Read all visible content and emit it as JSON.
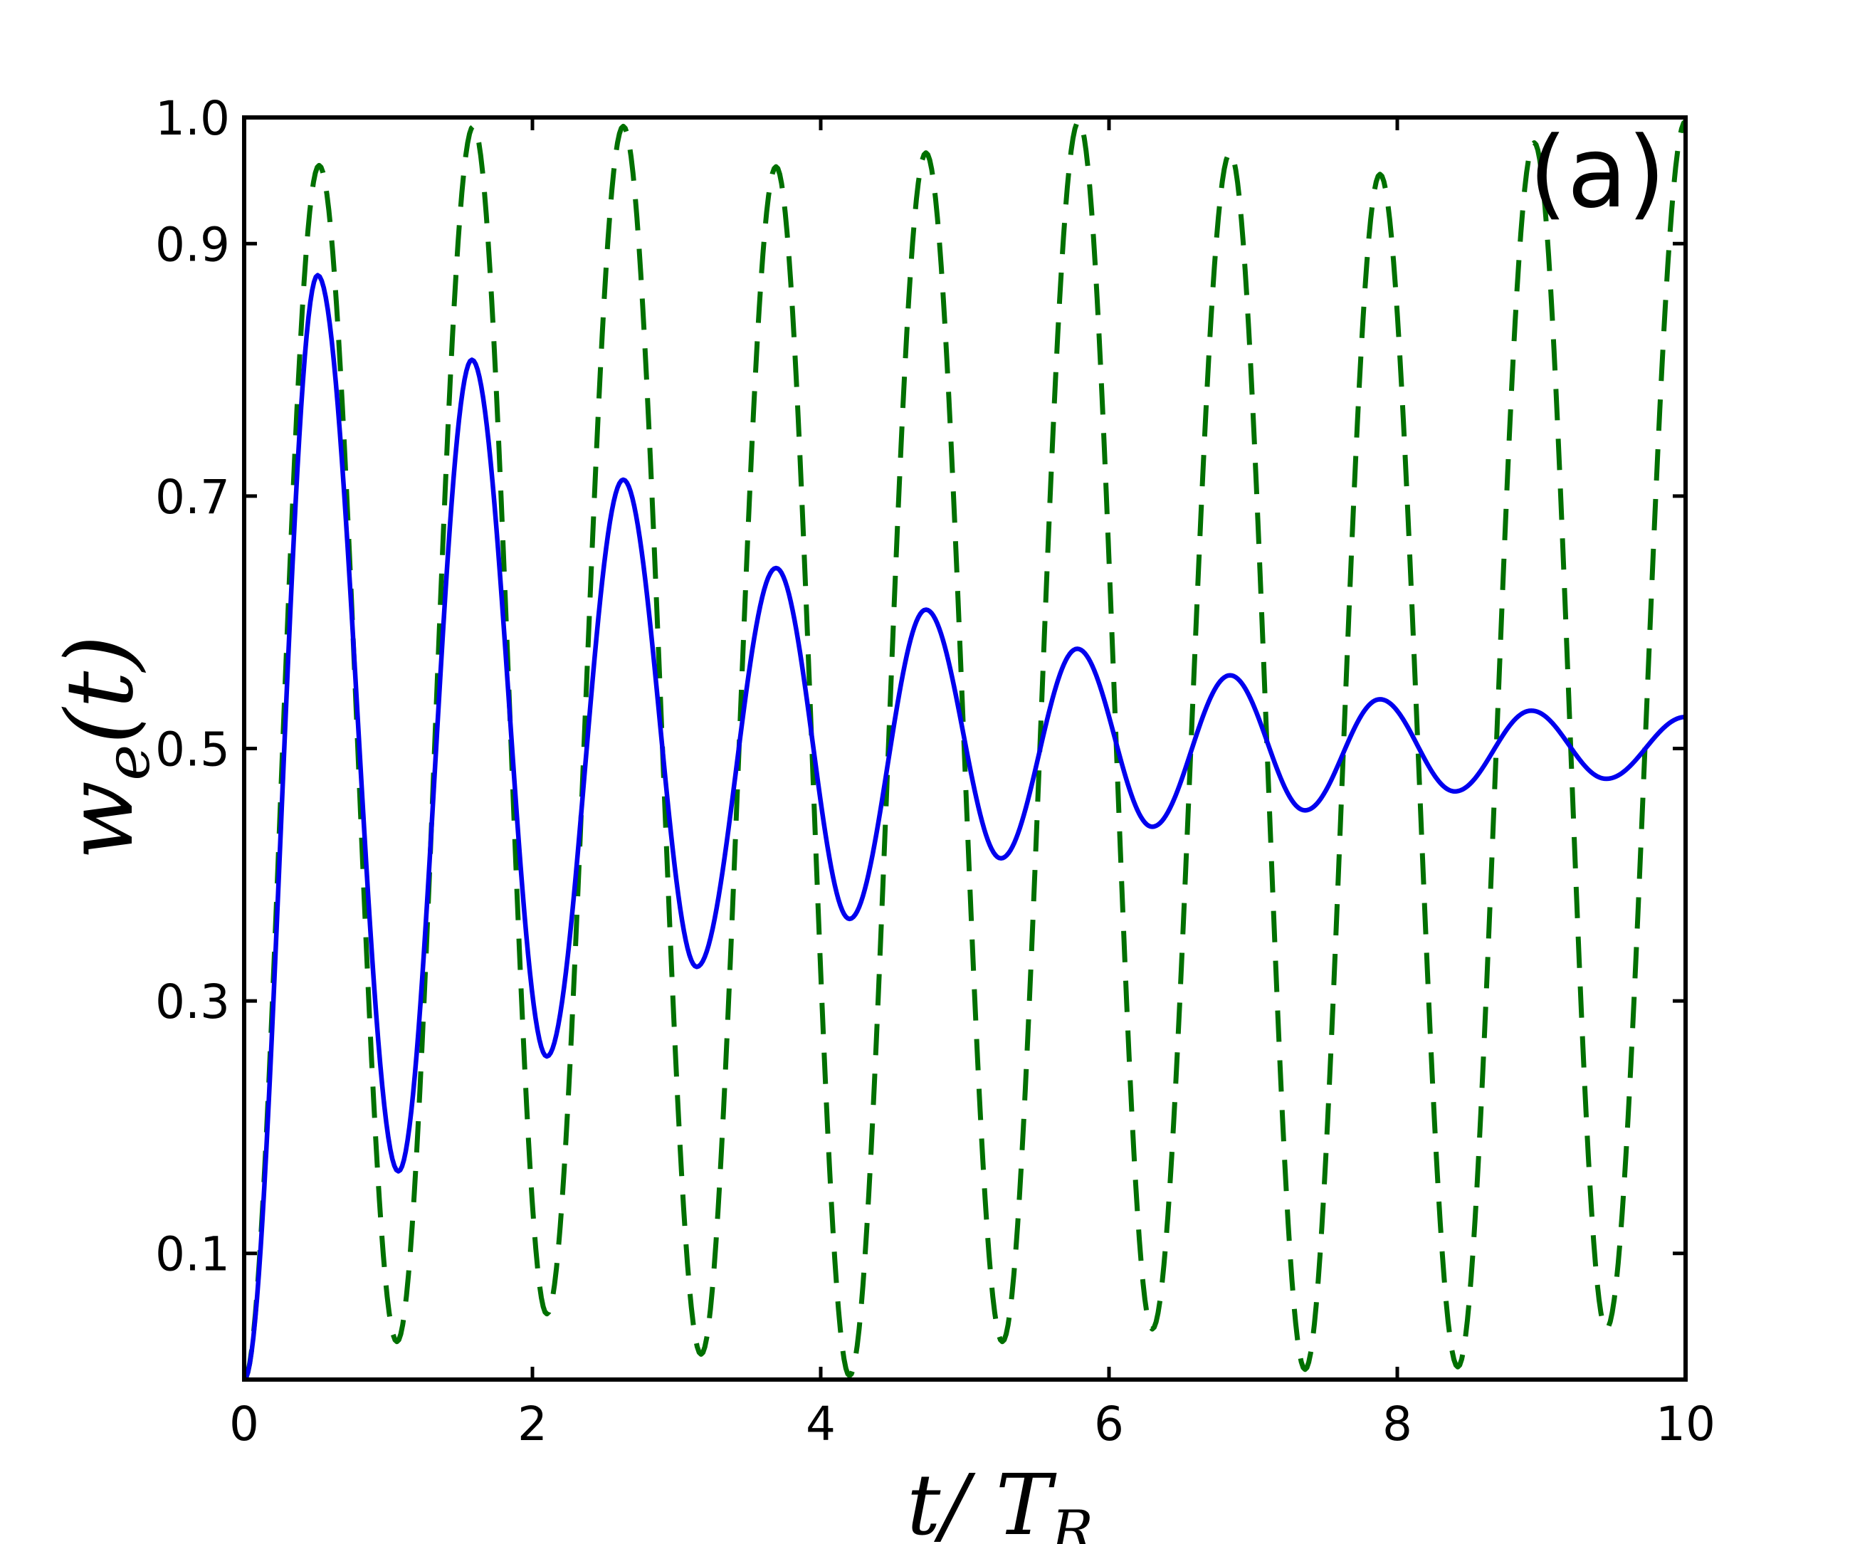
{
  "chart_data": {
    "type": "line",
    "panel_label": "(a)",
    "xlabel": {
      "main": "t/ T",
      "sub": "R"
    },
    "ylabel": {
      "main": "w",
      "sub": "e",
      "args": "(t)"
    },
    "xlim": [
      0,
      10
    ],
    "ylim": [
      0,
      1.0
    ],
    "xticks": [
      0,
      2,
      4,
      6,
      8,
      10
    ],
    "xtick_labels": [
      "0",
      "2",
      "4",
      "6",
      "8",
      "10"
    ],
    "yticks": [
      0.1,
      0.3,
      0.5,
      0.7,
      0.9,
      1.0
    ],
    "ytick_labels": [
      "0.1",
      "0.3",
      "0.5",
      "0.7",
      "0.9",
      "1.0"
    ],
    "grid": false,
    "series": [
      {
        "style": "solid",
        "color": "#0000ee",
        "x": [
          0,
          0.51,
          1.07,
          1.58,
          2.1,
          2.63,
          3.14,
          3.69,
          4.2,
          4.73,
          5.25,
          5.78,
          6.3,
          6.84,
          7.36,
          7.88,
          8.4,
          8.93,
          9.45,
          10.0
        ],
        "y": [
          0.0,
          0.875,
          0.165,
          0.808,
          0.256,
          0.713,
          0.327,
          0.643,
          0.365,
          0.61,
          0.413,
          0.579,
          0.438,
          0.558,
          0.451,
          0.539,
          0.466,
          0.53,
          0.476,
          0.525
        ]
      },
      {
        "style": "dashed",
        "color": "#007000",
        "x": [
          0,
          0.52,
          1.06,
          1.59,
          2.1,
          2.63,
          3.17,
          3.69,
          4.2,
          4.73,
          5.26,
          5.79,
          6.3,
          6.84,
          7.36,
          7.88,
          8.42,
          8.95,
          9.45,
          10.0
        ],
        "y": [
          0.0,
          0.962,
          0.03,
          0.993,
          0.052,
          0.993,
          0.02,
          0.961,
          0.003,
          0.972,
          0.03,
          0.997,
          0.04,
          0.972,
          0.008,
          0.955,
          0.01,
          0.98,
          0.04,
          0.997
        ]
      }
    ]
  }
}
